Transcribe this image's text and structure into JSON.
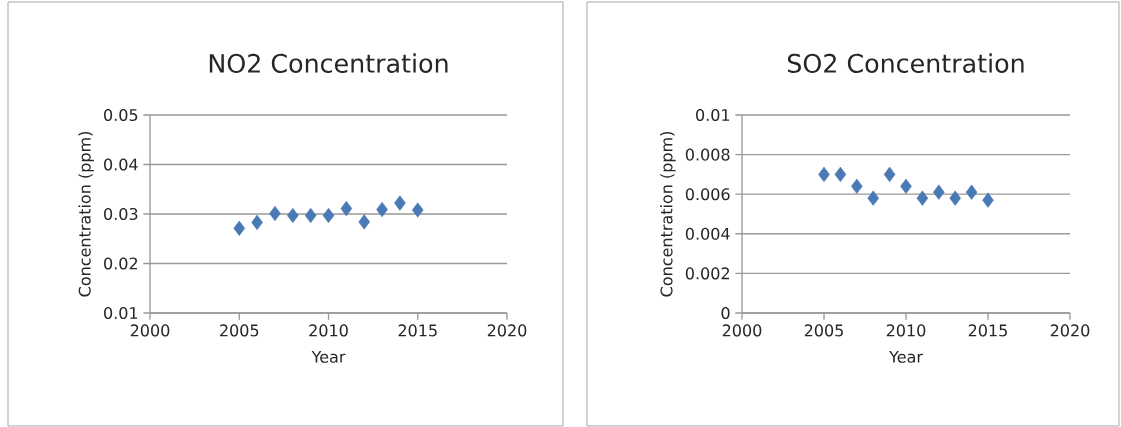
{
  "chart_data": [
    {
      "type": "scatter",
      "title": "NO2 Concentration",
      "xlabel": "Year",
      "ylabel": "Concentration (ppm)",
      "marker": "diamond",
      "grid": "y",
      "x": [
        2005,
        2006,
        2007,
        2008,
        2009,
        2010,
        2011,
        2012,
        2013,
        2014,
        2015
      ],
      "series": [
        {
          "color": "#4a7ab5",
          "values": [
            0.0271,
            0.0283,
            0.0301,
            0.0297,
            0.0297,
            0.0297,
            0.0311,
            0.0284,
            0.0309,
            0.0322,
            0.0308
          ]
        }
      ],
      "xlim": [
        2000,
        2020
      ],
      "xticks": [
        2000,
        2005,
        2010,
        2015,
        2020
      ],
      "ylim": [
        0.01,
        0.05
      ],
      "yticks": [
        0.01,
        0.02,
        0.03,
        0.04,
        0.05
      ]
    },
    {
      "type": "scatter",
      "title": "SO2 Concentration",
      "xlabel": "Year",
      "ylabel": "Concentration (ppm)",
      "marker": "diamond",
      "grid": "y",
      "x": [
        2005,
        2006,
        2007,
        2008,
        2009,
        2010,
        2011,
        2012,
        2013,
        2014,
        2015
      ],
      "series": [
        {
          "color": "#4a7ab5",
          "values": [
            0.007,
            0.007,
            0.0064,
            0.0058,
            0.007,
            0.0064,
            0.0058,
            0.0061,
            0.0058,
            0.0061,
            0.0057
          ]
        }
      ],
      "xlim": [
        2000,
        2020
      ],
      "xticks": [
        2000,
        2005,
        2010,
        2015,
        2020
      ],
      "ylim": [
        0,
        0.01
      ],
      "yticks": [
        0,
        0.002,
        0.004,
        0.006,
        0.008,
        0.01
      ]
    }
  ]
}
